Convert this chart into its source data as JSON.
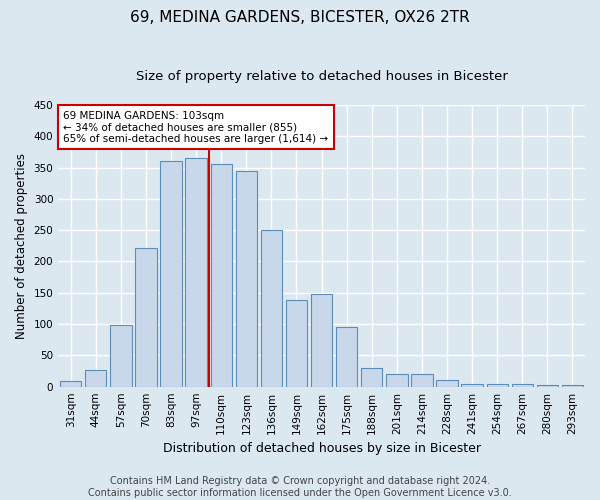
{
  "title": "69, MEDINA GARDENS, BICESTER, OX26 2TR",
  "subtitle": "Size of property relative to detached houses in Bicester",
  "xlabel": "Distribution of detached houses by size in Bicester",
  "ylabel": "Number of detached properties",
  "categories": [
    "31sqm",
    "44sqm",
    "57sqm",
    "70sqm",
    "83sqm",
    "97sqm",
    "110sqm",
    "123sqm",
    "136sqm",
    "149sqm",
    "162sqm",
    "175sqm",
    "188sqm",
    "201sqm",
    "214sqm",
    "228sqm",
    "241sqm",
    "254sqm",
    "267sqm",
    "280sqm",
    "293sqm"
  ],
  "values": [
    9,
    26,
    99,
    222,
    360,
    365,
    355,
    344,
    250,
    138,
    148,
    96,
    30,
    20,
    20,
    11,
    5,
    5,
    4,
    3,
    3
  ],
  "bar_color": "#c8d8ea",
  "bar_edge_color": "#5b8db8",
  "vline_x_index": 5.5,
  "vline_color": "#cc0000",
  "annotation_box_color": "#cc0000",
  "annotation_line1": "69 MEDINA GARDENS: 103sqm",
  "annotation_line2": "← 34% of detached houses are smaller (855)",
  "annotation_line3": "65% of semi-detached houses are larger (1,614) →",
  "footnote1": "Contains HM Land Registry data © Crown copyright and database right 2024.",
  "footnote2": "Contains public sector information licensed under the Open Government Licence v3.0.",
  "ylim": [
    0,
    450
  ],
  "fig_background": "#dce8f0",
  "plot_background": "#dce8f0",
  "grid_color": "#ffffff",
  "title_fontsize": 11,
  "subtitle_fontsize": 9.5,
  "xlabel_fontsize": 9,
  "ylabel_fontsize": 8.5,
  "tick_fontsize": 7.5,
  "annotation_fontsize": 7.5,
  "footnote_fontsize": 7
}
